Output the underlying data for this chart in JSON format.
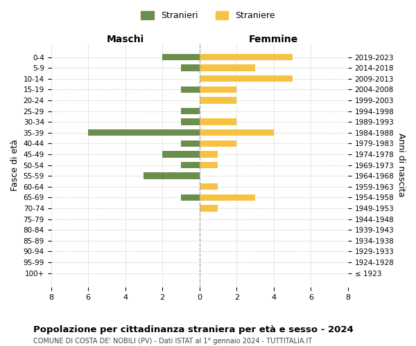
{
  "age_groups": [
    "0-4",
    "5-9",
    "10-14",
    "15-19",
    "20-24",
    "25-29",
    "30-34",
    "35-39",
    "40-44",
    "45-49",
    "50-54",
    "55-59",
    "60-64",
    "65-69",
    "70-74",
    "75-79",
    "80-84",
    "85-89",
    "90-94",
    "95-99",
    "100+"
  ],
  "birth_years": [
    "2019-2023",
    "2014-2018",
    "2009-2013",
    "2004-2008",
    "1999-2003",
    "1994-1998",
    "1989-1993",
    "1984-1988",
    "1979-1983",
    "1974-1978",
    "1969-1973",
    "1964-1968",
    "1959-1963",
    "1954-1958",
    "1949-1953",
    "1944-1948",
    "1939-1943",
    "1934-1938",
    "1929-1933",
    "1924-1928",
    "≤ 1923"
  ],
  "stranieri": [
    2,
    1,
    0,
    1,
    0,
    1,
    1,
    6,
    1,
    2,
    1,
    3,
    0,
    1,
    0,
    0,
    0,
    0,
    0,
    0,
    0
  ],
  "straniere": [
    5,
    3,
    5,
    2,
    2,
    0,
    2,
    4,
    2,
    1,
    1,
    0,
    1,
    3,
    1,
    0,
    0,
    0,
    0,
    0,
    0
  ],
  "color_stranieri": "#6b8e4e",
  "color_straniere": "#f5c242",
  "title": "Popolazione per cittadinanza straniera per età e sesso - 2024",
  "subtitle": "COMUNE DI COSTA DE' NOBILI (PV) - Dati ISTAT al 1° gennaio 2024 - TUTTITALIA.IT",
  "xlabel_left": "Maschi",
  "xlabel_right": "Femmine",
  "ylabel_left": "Fasce di età",
  "ylabel_right": "Anni di nascita",
  "legend_stranieri": "Stranieri",
  "legend_straniere": "Straniere",
  "xlim": 8,
  "background_color": "#ffffff",
  "grid_color": "#cccccc"
}
